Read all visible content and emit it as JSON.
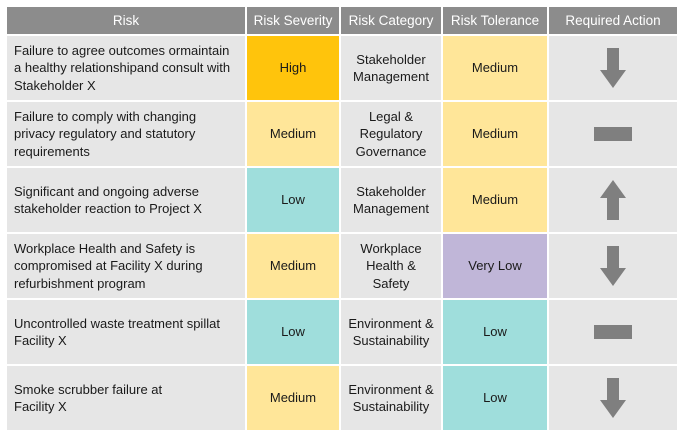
{
  "headers": {
    "risk": "Risk",
    "severity": "Risk Severity",
    "category": "Risk Category",
    "tolerance": "Risk Tolerance",
    "action": "Required Action"
  },
  "rows": [
    {
      "risk_lines": [
        "Failure to agree outcomes ormaintain",
        "a healthy relationshipand consult with",
        "Stakeholder X"
      ],
      "severity": "High",
      "severity_level": "high",
      "category_lines": [
        "Stakeholder",
        "Management"
      ],
      "tolerance": "Medium",
      "tolerance_level": "medium",
      "action_icon": "arrow-down-icon"
    },
    {
      "risk_lines": [
        "Failure to comply with changing",
        "privacy regulatory and statutory",
        "requirements"
      ],
      "severity": "Medium",
      "severity_level": "medium",
      "category_lines": [
        "Legal &",
        "Regulatory",
        "Governance"
      ],
      "tolerance": "Medium",
      "tolerance_level": "medium",
      "action_icon": "dash-icon"
    },
    {
      "risk_lines": [
        "Significant and ongoing adverse",
        "stakeholder reaction to Project X"
      ],
      "severity": "Low",
      "severity_level": "low",
      "category_lines": [
        "Stakeholder",
        "Management"
      ],
      "tolerance": "Medium",
      "tolerance_level": "medium",
      "action_icon": "arrow-up-icon"
    },
    {
      "risk_lines": [
        "Workplace Health and Safety is",
        "compromised at Facility X during",
        "refurbishment program"
      ],
      "severity": "Medium",
      "severity_level": "medium",
      "category_lines": [
        "Workplace",
        "Health &",
        "Safety"
      ],
      "tolerance": "Very Low",
      "tolerance_level": "verylow",
      "action_icon": "arrow-down-icon"
    },
    {
      "risk_lines": [
        "Uncontrolled waste treatment spillat",
        "Facility X"
      ],
      "severity": "Low",
      "severity_level": "low",
      "category_lines": [
        "Environment &",
        "Sustainability"
      ],
      "tolerance": "Low",
      "tolerance_level": "low",
      "action_icon": "dash-icon"
    },
    {
      "risk_lines": [
        "Smoke scrubber failure at",
        "Facility X"
      ],
      "severity": "Medium",
      "severity_level": "medium",
      "category_lines": [
        "Environment &",
        "Sustainability"
      ],
      "tolerance": "Low",
      "tolerance_level": "low",
      "action_icon": "arrow-down-icon"
    }
  ],
  "colors": {
    "header": "#8c8c8c",
    "gray_cell": "#e6e6e6",
    "high": "#ffc40c",
    "medium": "#ffe699",
    "low": "#9fdedc",
    "very_low": "#c0b6d8",
    "icon": "#7f7f7f"
  }
}
